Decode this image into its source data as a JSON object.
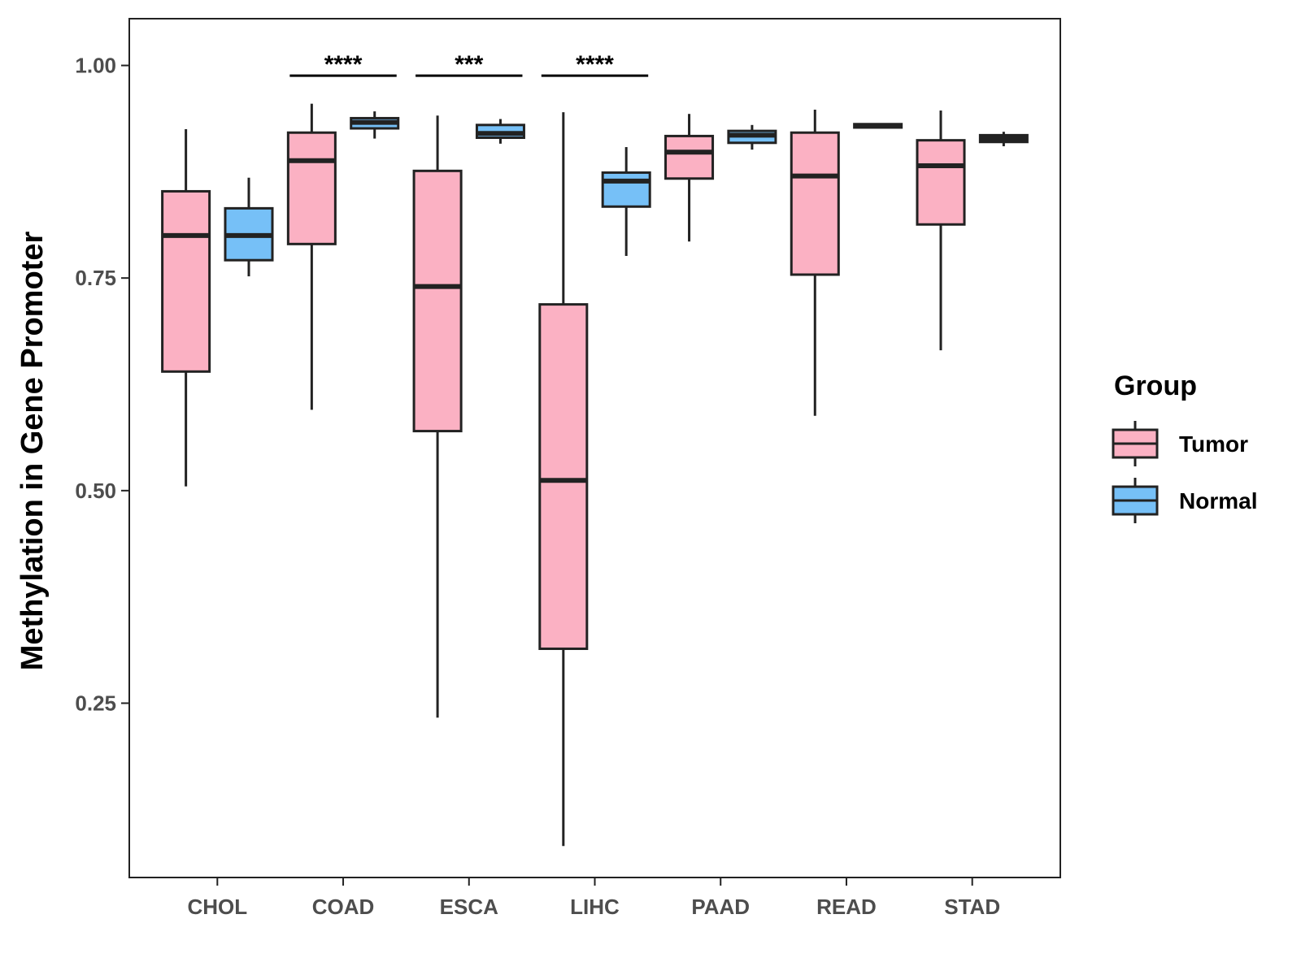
{
  "chart_data": {
    "type": "boxplot",
    "title": "",
    "xlabel": "",
    "ylabel": "Methylation in Gene Promoter",
    "ylim": [
      0.045,
      1.055
    ],
    "yticks": [
      "0.25",
      "0.50",
      "0.75",
      "1.00"
    ],
    "categories": [
      "CHOL",
      "COAD",
      "ESCA",
      "LIHC",
      "PAAD",
      "READ",
      "STAD"
    ],
    "legend": {
      "title": "Group",
      "position": "right",
      "entries": [
        {
          "name": "Tumor",
          "color": "#FBB1C3"
        },
        {
          "name": "Normal",
          "color": "#76C0F7"
        }
      ]
    },
    "series": [
      {
        "name": "Tumor",
        "color": "#FBB1C3",
        "boxes": [
          {
            "category": "CHOL",
            "min": 0.505,
            "q1": 0.64,
            "median": 0.8,
            "q3": 0.852,
            "max": 0.925
          },
          {
            "category": "COAD",
            "min": 0.595,
            "q1": 0.79,
            "median": 0.888,
            "q3": 0.921,
            "max": 0.955
          },
          {
            "category": "ESCA",
            "min": 0.233,
            "q1": 0.57,
            "median": 0.74,
            "q3": 0.876,
            "max": 0.941
          },
          {
            "category": "LIHC",
            "min": 0.082,
            "q1": 0.314,
            "median": 0.512,
            "q3": 0.719,
            "max": 0.945
          },
          {
            "category": "PAAD",
            "min": 0.793,
            "q1": 0.867,
            "median": 0.898,
            "q3": 0.917,
            "max": 0.943
          },
          {
            "category": "READ",
            "min": 0.588,
            "q1": 0.754,
            "median": 0.87,
            "q3": 0.921,
            "max": 0.948
          },
          {
            "category": "STAD",
            "min": 0.665,
            "q1": 0.813,
            "median": 0.882,
            "q3": 0.912,
            "max": 0.947
          }
        ]
      },
      {
        "name": "Normal",
        "color": "#76C0F7",
        "boxes": [
          {
            "category": "CHOL",
            "min": 0.752,
            "q1": 0.771,
            "median": 0.8,
            "q3": 0.832,
            "max": 0.868
          },
          {
            "category": "COAD",
            "min": 0.914,
            "q1": 0.926,
            "median": 0.933,
            "q3": 0.938,
            "max": 0.946
          },
          {
            "category": "ESCA",
            "min": 0.908,
            "q1": 0.915,
            "median": 0.92,
            "q3": 0.93,
            "max": 0.937
          },
          {
            "category": "LIHC",
            "min": 0.776,
            "q1": 0.834,
            "median": 0.864,
            "q3": 0.874,
            "max": 0.904
          },
          {
            "category": "PAAD",
            "min": 0.901,
            "q1": 0.909,
            "median": 0.918,
            "q3": 0.923,
            "max": 0.93
          },
          {
            "category": "READ",
            "min": 0.926,
            "q1": 0.927,
            "median": 0.929,
            "q3": 0.931,
            "max": 0.932
          },
          {
            "category": "STAD",
            "min": 0.905,
            "q1": 0.91,
            "median": 0.914,
            "q3": 0.918,
            "max": 0.922
          }
        ]
      }
    ],
    "annotations": [
      {
        "category": "COAD",
        "text": "****",
        "y": 0.988
      },
      {
        "category": "ESCA",
        "text": "***",
        "y": 0.988
      },
      {
        "category": "LIHC",
        "text": "****",
        "y": 0.988
      }
    ]
  }
}
